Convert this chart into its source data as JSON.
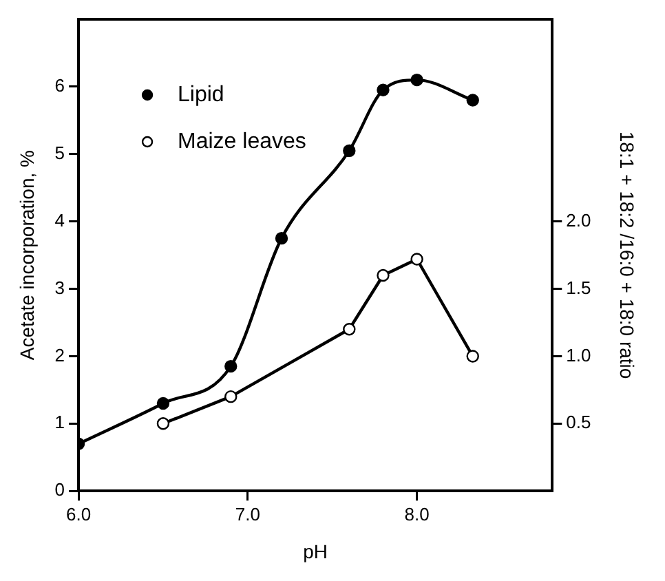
{
  "chart_data": {
    "type": "line",
    "xlabel": "pH",
    "ylabel": "Acetate incorporation, %",
    "y2label": "18:1 + 18:2 /16:0 + 18:0 ratio",
    "xlim": [
      6,
      8.8
    ],
    "xticks": [
      {
        "value": 6,
        "label": "6.0"
      },
      {
        "value": 7,
        "label": "7.0"
      },
      {
        "value": 8,
        "label": "8.0"
      }
    ],
    "ylim": [
      0,
      7
    ],
    "yticks": [
      0,
      1,
      2,
      3,
      4,
      5,
      6
    ],
    "y2lim": [
      0,
      3.5
    ],
    "y2ticks": [
      {
        "value": 0.5,
        "label": "0.5"
      },
      {
        "value": 1,
        "label": "1.0"
      },
      {
        "value": 1.5,
        "label": "1.5"
      },
      {
        "value": 2,
        "label": "2.0"
      }
    ],
    "series": [
      {
        "name": "Lipid",
        "color": "#000000",
        "x": [
          6.0,
          6.5,
          6.9,
          7.2,
          7.6,
          7.8,
          8.0,
          8.33
        ],
        "values": [
          0.7,
          1.3,
          1.85,
          3.75,
          5.05,
          5.95,
          6.1,
          5.8
        ]
      },
      {
        "name": "Maize leaves",
        "color": "#000000",
        "axis": "y2",
        "x": [
          6.5,
          6.9,
          7.6,
          7.8,
          8.0,
          8.33
        ],
        "values": [
          0.5,
          0.7,
          1.2,
          1.6,
          1.72,
          1.0
        ]
      }
    ],
    "marker": "circle",
    "line_style": "solid",
    "grid": false,
    "legend": "top left"
  }
}
